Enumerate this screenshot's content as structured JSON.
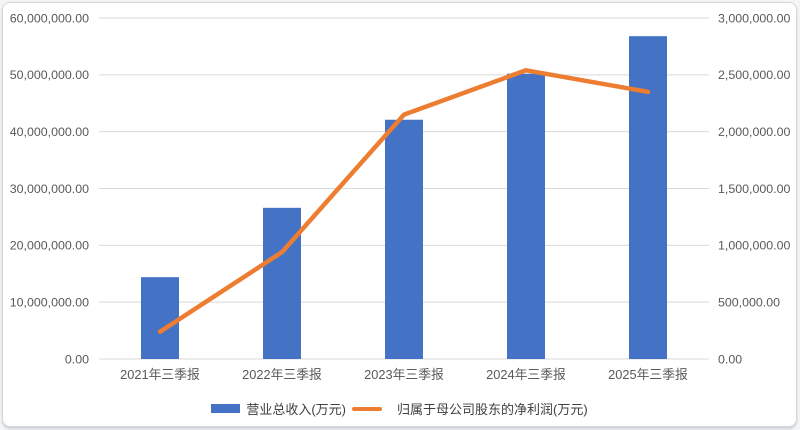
{
  "chart": {
    "background": "#ffffff",
    "border_color": "#d6d6d6",
    "grid_color": "#d9d9d9",
    "tick_text_color": "#595959",
    "legend_text_color": "#404040"
  },
  "chart_data": {
    "type": "bar",
    "subtype": "bar-line-combo",
    "title": "",
    "categories": [
      "2021年三季报",
      "2022年三季报",
      "2023年三季报",
      "2024年三季报",
      "2025年三季报"
    ],
    "series": [
      {
        "name": "营业总收入(万元)",
        "type": "bar",
        "axis": "left",
        "color": "#4472c4",
        "values": [
          14400000,
          26600000,
          42100000,
          50200000,
          56800000
        ]
      },
      {
        "name": "归属于母公司股东的净利润(万元)",
        "type": "line",
        "axis": "right",
        "color": "#ed7d31",
        "values": [
          240000,
          940000,
          2150000,
          2540000,
          2350000
        ]
      }
    ],
    "left_axis": {
      "min": 0,
      "max": 60000000,
      "step": 10000000,
      "tick_labels_top_to_bottom": [
        "60,000,000.00",
        "50,000,000.00",
        "40,000,000.00",
        "30,000,000.00",
        "20,000,000.00",
        "10,000,000.00",
        "0.00"
      ]
    },
    "right_axis": {
      "min": 0,
      "max": 3000000,
      "step": 500000,
      "tick_labels_top_to_bottom": [
        "3,000,000.00",
        "2,500,000.00",
        "2,000,000.00",
        "1,500,000.00",
        "1,000,000.00",
        "500,000.00",
        "0.00"
      ]
    },
    "grid": true,
    "legend_position": "bottom",
    "legend": [
      {
        "label": "营业总收入(万元)",
        "swatch": "bar",
        "color": "#4472c4"
      },
      {
        "label": "归属于母公司股东的净利润(万元)",
        "swatch": "line",
        "color": "#ed7d31"
      }
    ]
  }
}
